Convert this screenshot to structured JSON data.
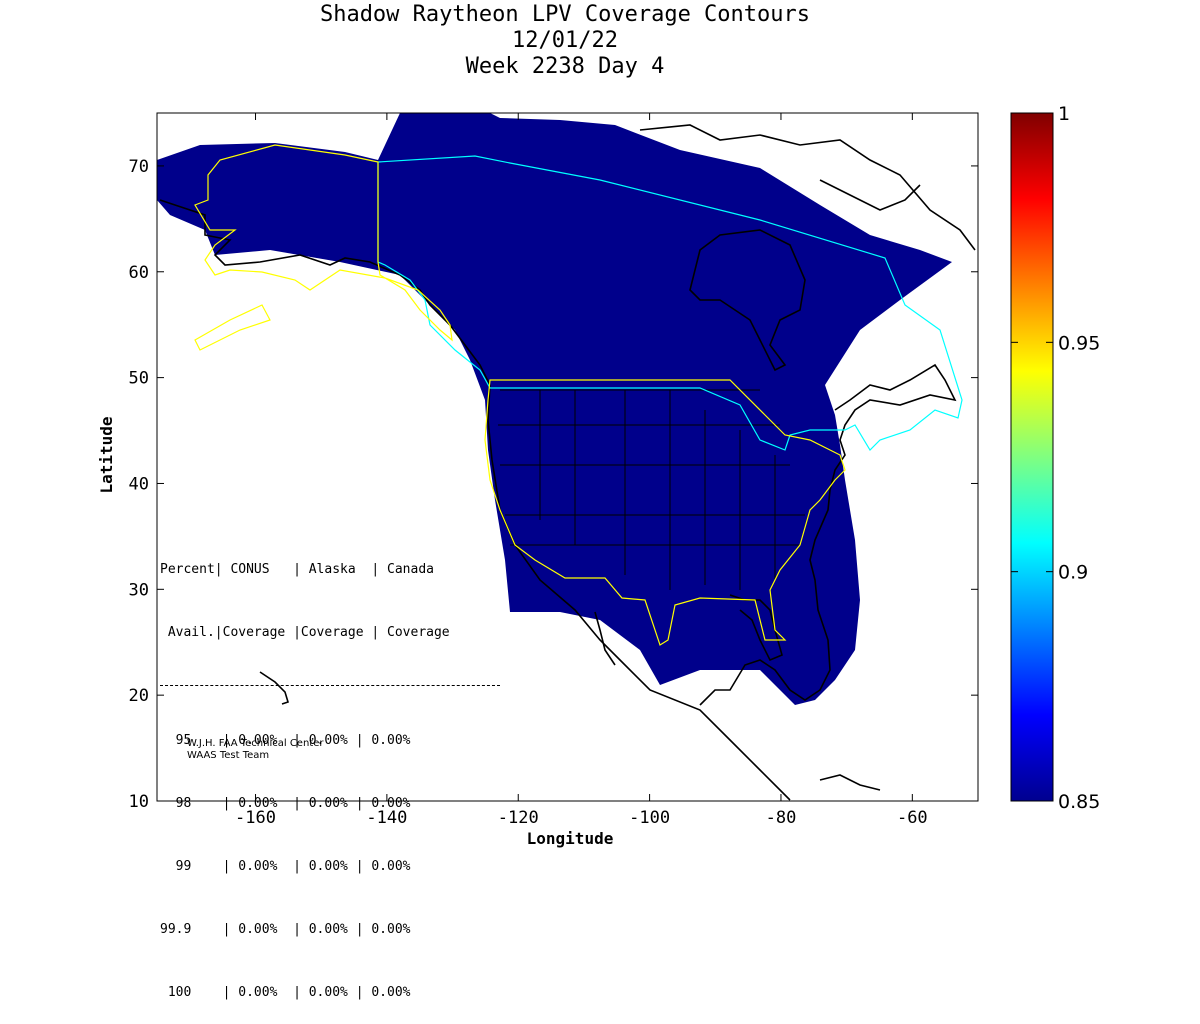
{
  "title": {
    "line1": "Shadow Raytheon LPV Coverage Contours",
    "line2": "12/01/22",
    "line3": "Week 2238 Day 4"
  },
  "axes": {
    "xlabel": "Longitude",
    "ylabel": "Latitude",
    "xlim": [
      -175,
      -50
    ],
    "ylim": [
      10,
      75
    ],
    "xticks": [
      -160,
      -140,
      -120,
      -100,
      -80,
      -60
    ],
    "yticks": [
      10,
      20,
      30,
      40,
      50,
      60,
      70
    ],
    "xtick_labels": [
      "-160",
      "-140",
      "-120",
      "-100",
      "-80",
      "-60"
    ],
    "ytick_labels": [
      "10",
      "20",
      "30",
      "40",
      "50",
      "60",
      "70"
    ]
  },
  "colorbar": {
    "min": 0.85,
    "max": 1,
    "tick_labels": [
      "1",
      "0.95",
      "0.9",
      "0.85"
    ],
    "colormap": "jet",
    "colors": [
      "#00008f",
      "#0000ff",
      "#0080ff",
      "#00ffff",
      "#80ff80",
      "#ffff00",
      "#ff8000",
      "#ff0000",
      "#800000"
    ]
  },
  "map": {
    "coverage_color": "#00008b",
    "boundary_colors": {
      "conus": "#ffff00",
      "alaska": "#ffff00",
      "canada": "#00ffff"
    }
  },
  "stats_table": {
    "header1": [
      "Percent",
      "CONUS",
      "Alaska",
      "Canada"
    ],
    "header2": [
      "Avail.",
      "Coverage",
      "Coverage",
      "Coverage"
    ],
    "rows": [
      {
        "pct": "95",
        "conus": "0.00%",
        "alaska": "0.00%",
        "canada": "0.00%"
      },
      {
        "pct": "98",
        "conus": "0.00%",
        "alaska": "0.00%",
        "canada": "0.00%"
      },
      {
        "pct": "99",
        "conus": "0.00%",
        "alaska": "0.00%",
        "canada": "0.00%"
      },
      {
        "pct": "99.9",
        "conus": "0.00%",
        "alaska": "0.00%",
        "canada": "0.00%"
      },
      {
        "pct": "100",
        "conus": "0.00%",
        "alaska": "0.00%",
        "canada": "0.00%"
      }
    ]
  },
  "credit": {
    "line1": "W.J.H. FAA Technical Center",
    "line2": "WAAS Test Team"
  }
}
